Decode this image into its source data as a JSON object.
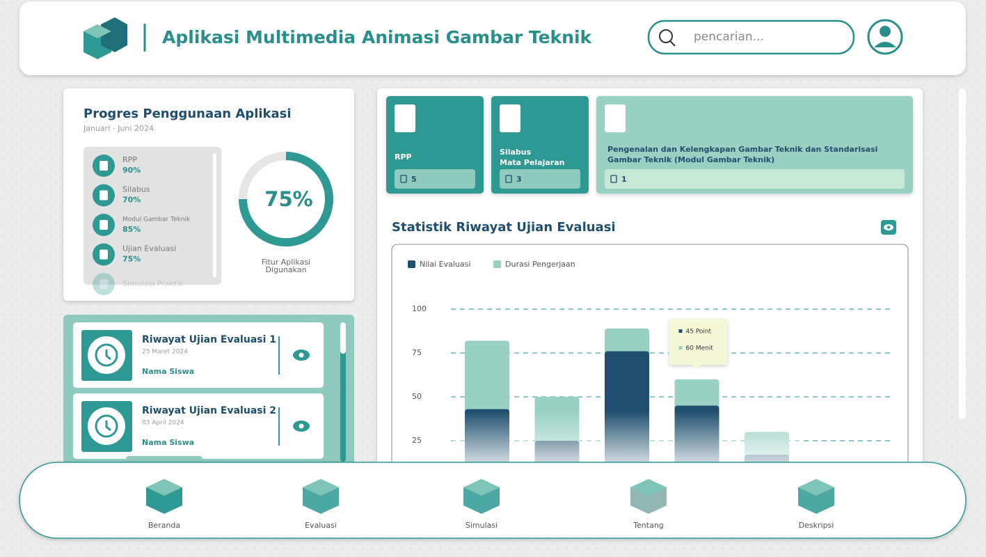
{
  "header": {
    "title": "Aplikasi Multimedia Animasi Gambar Teknik",
    "search_placeholder": "pencarian..."
  },
  "progress": {
    "title": "Progres Penggunaan Aplikasi",
    "period": "Januari - Juni 2024",
    "items": [
      {
        "label": "RPP",
        "percent": "90%"
      },
      {
        "label": "Silabus",
        "percent": "70%"
      },
      {
        "label": "Modul Gambar Teknik",
        "percent": "85%"
      },
      {
        "label": "Ujian Evaluasi",
        "percent": "75%"
      },
      {
        "label": "Simulasi Praktik"
      }
    ],
    "ring": {
      "value": 75,
      "label": "75%",
      "caption": [
        "Fitur Aplikasi",
        "Digunakan"
      ]
    }
  },
  "history": [
    {
      "title": "Riwayat Ujian Evaluasi 1",
      "date": "25 Maret 2024",
      "student": "Nama Siswa"
    },
    {
      "title": "Riwayat Ujian Evaluasi 2",
      "date": "03 April 2024",
      "student": "Nama Siswa"
    }
  ],
  "cards": [
    {
      "title": [
        "RPP"
      ],
      "count": 5
    },
    {
      "title": [
        "Silabus",
        "Mata Pelajaran"
      ],
      "count": 3
    },
    {
      "title": [
        "Pengenalan dan Kelengkapan Gambar Teknik dan Standarisasi",
        "Gambar Teknik (Modul Gambar Teknik)"
      ],
      "count": 1
    }
  ],
  "chart_data": {
    "type": "bar",
    "title": "Statistik Riwayat Ujian Evaluasi",
    "categories": [
      null,
      null,
      null,
      null,
      null
    ],
    "series": [
      {
        "name": "Nilai Evaluasi",
        "color": "#1f4e6e",
        "values": [
          43,
          25,
          76,
          45,
          17
        ]
      },
      {
        "name": "Durasi Pengerjaan",
        "color": "#98d0c2",
        "values": [
          82,
          50,
          89,
          60,
          30
        ]
      }
    ],
    "ylim": [
      0,
      100
    ],
    "yticks": [
      25,
      50,
      75,
      100
    ],
    "grid": true,
    "tooltip": [
      "45 Point",
      "60 Menit"
    ]
  },
  "nav": [
    "Beranda",
    "Evaluasi",
    "Simulasi",
    "Tentang",
    "Deskripsi"
  ]
}
